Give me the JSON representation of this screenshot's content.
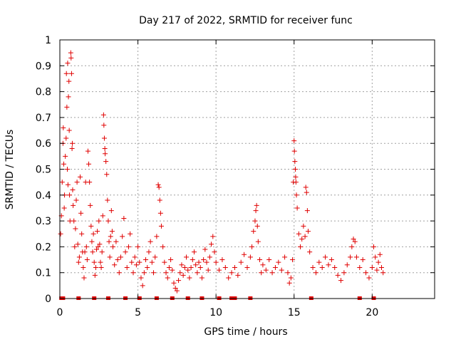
{
  "chart_data": {
    "type": "scatter",
    "title": "Day 217 of 2022, SRMTID for receiver func",
    "xlabel": "GPS time / hours",
    "ylabel": "SRMTID / TECUs",
    "xlim": [
      0,
      24
    ],
    "ylim": [
      0,
      1
    ],
    "x_ticks": [
      0,
      5,
      10,
      15,
      20
    ],
    "x_tick_labels": [
      "0",
      "5",
      "10",
      "15",
      "20"
    ],
    "y_ticks": [
      0,
      0.1,
      0.2,
      0.3,
      0.4,
      0.5,
      0.6,
      0.7,
      0.8,
      0.9,
      1
    ],
    "y_tick_labels": [
      "0",
      "0.1",
      "0.2",
      "0.3",
      "0.4",
      "0.5",
      "0.6",
      "0.7",
      "0.8",
      "0.9",
      "1"
    ],
    "grid": true,
    "marker": "+",
    "color": "#e00000",
    "series": [
      {
        "name": "SRMTID",
        "points": [
          [
            0.05,
            0.25
          ],
          [
            0.1,
            0.32
          ],
          [
            0.15,
            0.45
          ],
          [
            0.2,
            0.6
          ],
          [
            0.22,
            0.66
          ],
          [
            0.25,
            0.52
          ],
          [
            0.28,
            0.35
          ],
          [
            0.3,
            0.4
          ],
          [
            0.35,
            0.55
          ],
          [
            0.4,
            0.62
          ],
          [
            0.42,
            0.87
          ],
          [
            0.45,
            0.74
          ],
          [
            0.48,
            0.5
          ],
          [
            0.5,
            0.91
          ],
          [
            0.52,
            0.44
          ],
          [
            0.55,
            0.78
          ],
          [
            0.58,
            0.84
          ],
          [
            0.6,
            0.65
          ],
          [
            0.62,
            0.4
          ],
          [
            0.65,
            0.3
          ],
          [
            0.7,
            0.95
          ],
          [
            0.72,
            0.93
          ],
          [
            0.75,
            0.87
          ],
          [
            0.78,
            0.58
          ],
          [
            0.8,
            0.6
          ],
          [
            0.82,
            0.42
          ],
          [
            0.85,
            0.36
          ],
          [
            0.9,
            0.3
          ],
          [
            0.95,
            0.2
          ],
          [
            1.0,
            0.27
          ],
          [
            1.05,
            0.38
          ],
          [
            1.1,
            0.45
          ],
          [
            1.15,
            0.21
          ],
          [
            1.2,
            0.14
          ],
          [
            1.25,
            0.16
          ],
          [
            1.3,
            0.47
          ],
          [
            1.35,
            0.33
          ],
          [
            1.4,
            0.25
          ],
          [
            1.45,
            0.18
          ],
          [
            1.5,
            0.12
          ],
          [
            1.55,
            0.08
          ],
          [
            1.6,
            0.18
          ],
          [
            1.65,
            0.45
          ],
          [
            1.7,
            0.2
          ],
          [
            1.75,
            0.15
          ],
          [
            1.8,
            0.57
          ],
          [
            1.85,
            0.52
          ],
          [
            1.9,
            0.45
          ],
          [
            1.95,
            0.36
          ],
          [
            2.0,
            0.28
          ],
          [
            2.05,
            0.22
          ],
          [
            2.1,
            0.18
          ],
          [
            2.15,
            0.25
          ],
          [
            2.2,
            0.14
          ],
          [
            2.25,
            0.09
          ],
          [
            2.3,
            0.12
          ],
          [
            2.35,
            0.19
          ],
          [
            2.4,
            0.26
          ],
          [
            2.45,
            0.2
          ],
          [
            2.5,
            0.3
          ],
          [
            2.55,
            0.21
          ],
          [
            2.6,
            0.14
          ],
          [
            2.65,
            0.12
          ],
          [
            2.7,
            0.18
          ],
          [
            2.75,
            0.32
          ],
          [
            2.8,
            0.71
          ],
          [
            2.82,
            0.67
          ],
          [
            2.85,
            0.62
          ],
          [
            2.88,
            0.58
          ],
          [
            2.9,
            0.56
          ],
          [
            2.95,
            0.53
          ],
          [
            3.0,
            0.48
          ],
          [
            3.05,
            0.38
          ],
          [
            3.1,
            0.3
          ],
          [
            3.15,
            0.22
          ],
          [
            3.2,
            0.16
          ],
          [
            3.25,
            0.24
          ],
          [
            3.3,
            0.34
          ],
          [
            3.35,
            0.26
          ],
          [
            3.4,
            0.2
          ],
          [
            3.5,
            0.13
          ],
          [
            3.6,
            0.22
          ],
          [
            3.7,
            0.15
          ],
          [
            3.8,
            0.1
          ],
          [
            3.9,
            0.16
          ],
          [
            4.0,
            0.24
          ],
          [
            4.1,
            0.31
          ],
          [
            4.2,
            0.18
          ],
          [
            4.3,
            0.12
          ],
          [
            4.4,
            0.2
          ],
          [
            4.5,
            0.25
          ],
          [
            4.6,
            0.14
          ],
          [
            4.7,
            0.1
          ],
          [
            4.8,
            0.16
          ],
          [
            4.9,
            0.13
          ],
          [
            5.0,
            0.2
          ],
          [
            5.1,
            0.14
          ],
          [
            5.2,
            0.08
          ],
          [
            5.3,
            0.05
          ],
          [
            5.4,
            0.1
          ],
          [
            5.5,
            0.15
          ],
          [
            5.6,
            0.12
          ],
          [
            5.7,
            0.18
          ],
          [
            5.8,
            0.22
          ],
          [
            5.9,
            0.14
          ],
          [
            6.0,
            0.1
          ],
          [
            6.1,
            0.16
          ],
          [
            6.2,
            0.24
          ],
          [
            6.3,
            0.44
          ],
          [
            6.35,
            0.43
          ],
          [
            6.4,
            0.38
          ],
          [
            6.45,
            0.33
          ],
          [
            6.5,
            0.28
          ],
          [
            6.6,
            0.2
          ],
          [
            6.7,
            0.14
          ],
          [
            6.8,
            0.1
          ],
          [
            6.9,
            0.08
          ],
          [
            7.0,
            0.12
          ],
          [
            7.1,
            0.15
          ],
          [
            7.2,
            0.11
          ],
          [
            7.3,
            0.06
          ],
          [
            7.4,
            0.04
          ],
          [
            7.5,
            0.03
          ],
          [
            7.6,
            0.07
          ],
          [
            7.7,
            0.1
          ],
          [
            7.8,
            0.13
          ],
          [
            7.9,
            0.09
          ],
          [
            8.0,
            0.12
          ],
          [
            8.1,
            0.16
          ],
          [
            8.2,
            0.11
          ],
          [
            8.3,
            0.08
          ],
          [
            8.4,
            0.12
          ],
          [
            8.5,
            0.15
          ],
          [
            8.6,
            0.18
          ],
          [
            8.7,
            0.13
          ],
          [
            8.8,
            0.1
          ],
          [
            8.9,
            0.14
          ],
          [
            9.0,
            0.12
          ],
          [
            9.1,
            0.08
          ],
          [
            9.2,
            0.15
          ],
          [
            9.3,
            0.19
          ],
          [
            9.4,
            0.14
          ],
          [
            9.5,
            0.11
          ],
          [
            9.6,
            0.16
          ],
          [
            9.7,
            0.21
          ],
          [
            9.8,
            0.24
          ],
          [
            9.9,
            0.18
          ],
          [
            10.0,
            0.14
          ],
          [
            10.2,
            0.11
          ],
          [
            10.4,
            0.15
          ],
          [
            10.6,
            0.12
          ],
          [
            10.8,
            0.08
          ],
          [
            11.0,
            0.1
          ],
          [
            11.2,
            0.12
          ],
          [
            11.4,
            0.09
          ],
          [
            11.6,
            0.14
          ],
          [
            11.8,
            0.17
          ],
          [
            12.0,
            0.12
          ],
          [
            12.2,
            0.16
          ],
          [
            12.3,
            0.2
          ],
          [
            12.4,
            0.26
          ],
          [
            12.5,
            0.3
          ],
          [
            12.55,
            0.34
          ],
          [
            12.6,
            0.36
          ],
          [
            12.65,
            0.28
          ],
          [
            12.7,
            0.22
          ],
          [
            12.8,
            0.15
          ],
          [
            12.9,
            0.1
          ],
          [
            13.0,
            0.13
          ],
          [
            13.2,
            0.11
          ],
          [
            13.4,
            0.15
          ],
          [
            13.6,
            0.1
          ],
          [
            13.8,
            0.12
          ],
          [
            14.0,
            0.14
          ],
          [
            14.2,
            0.11
          ],
          [
            14.4,
            0.16
          ],
          [
            14.6,
            0.1
          ],
          [
            14.7,
            0.06
          ],
          [
            14.8,
            0.08
          ],
          [
            14.9,
            0.15
          ],
          [
            14.95,
            0.45
          ],
          [
            15.0,
            0.61
          ],
          [
            15.02,
            0.57
          ],
          [
            15.05,
            0.53
          ],
          [
            15.08,
            0.5
          ],
          [
            15.1,
            0.47
          ],
          [
            15.12,
            0.45
          ],
          [
            15.15,
            0.4
          ],
          [
            15.2,
            0.35
          ],
          [
            15.3,
            0.25
          ],
          [
            15.4,
            0.2
          ],
          [
            15.5,
            0.23
          ],
          [
            15.6,
            0.28
          ],
          [
            15.7,
            0.24
          ],
          [
            15.75,
            0.43
          ],
          [
            15.8,
            0.41
          ],
          [
            15.85,
            0.34
          ],
          [
            15.9,
            0.26
          ],
          [
            16.0,
            0.18
          ],
          [
            16.2,
            0.12
          ],
          [
            16.4,
            0.1
          ],
          [
            16.6,
            0.14
          ],
          [
            16.8,
            0.12
          ],
          [
            17.0,
            0.16
          ],
          [
            17.2,
            0.13
          ],
          [
            17.4,
            0.15
          ],
          [
            17.6,
            0.12
          ],
          [
            17.8,
            0.09
          ],
          [
            18.0,
            0.07
          ],
          [
            18.2,
            0.1
          ],
          [
            18.4,
            0.13
          ],
          [
            18.6,
            0.16
          ],
          [
            18.7,
            0.2
          ],
          [
            18.8,
            0.23
          ],
          [
            18.9,
            0.22
          ],
          [
            19.0,
            0.16
          ],
          [
            19.2,
            0.12
          ],
          [
            19.4,
            0.15
          ],
          [
            19.6,
            0.1
          ],
          [
            19.8,
            0.08
          ],
          [
            20.0,
            0.12
          ],
          [
            20.1,
            0.2
          ],
          [
            20.2,
            0.16
          ],
          [
            20.3,
            0.11
          ],
          [
            20.4,
            0.14
          ],
          [
            20.5,
            0.17
          ],
          [
            20.6,
            0.12
          ],
          [
            20.7,
            0.1
          ]
        ]
      }
    ],
    "zero_markers_x": [
      0.1,
      0.2,
      1.2,
      2.2,
      3.1,
      4.2,
      5.1,
      6.2,
      7.2,
      8.2,
      9.1,
      10.2,
      11.0,
      11.2,
      12.2,
      16.1,
      19.2,
      20.1
    ]
  }
}
